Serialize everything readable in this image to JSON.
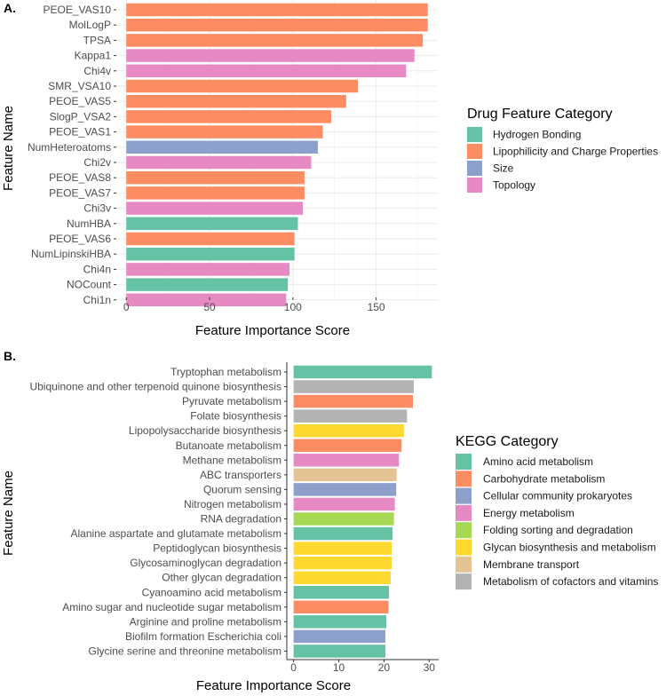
{
  "chart_data": [
    {
      "type": "bar",
      "orientation": "horizontal",
      "panel_label": "A.",
      "xlabel": "Feature Importance Score",
      "ylabel": "Feature Name",
      "xlim": [
        -6,
        187
      ],
      "xticks": [
        0,
        50,
        100,
        150
      ],
      "grid": true,
      "legend_title": "Drug Feature Category",
      "legend_position": "right",
      "colors": {
        "Hydrogen Bonding": "#66c2a5",
        "Lipophilicity and Charge Properties": "#fc8d62",
        "Size": "#8da0cb",
        "Topology": "#e78ac3"
      },
      "categories": [
        "PEOE_VAS10",
        "MolLogP",
        "TPSA",
        "Kappa1",
        "Chi4v",
        "SMR_VSA10",
        "PEOE_VAS5",
        "SlogP_VSA2",
        "PEOE_VAS1",
        "NumHeteroatoms",
        "Chi2v",
        "PEOE_VAS8",
        "PEOE_VAS7",
        "Chi3v",
        "NumHBA",
        "PEOE_VAS6",
        "NumLipinskiHBA",
        "Chi4n",
        "NOCount",
        "Chi1n"
      ],
      "values": [
        181,
        181,
        178,
        173,
        168,
        139,
        132,
        123,
        118,
        115,
        111,
        107,
        107,
        106,
        103,
        101,
        101,
        98,
        97,
        96
      ],
      "groups": [
        "Lipophilicity and Charge Properties",
        "Lipophilicity and Charge Properties",
        "Lipophilicity and Charge Properties",
        "Topology",
        "Topology",
        "Lipophilicity and Charge Properties",
        "Lipophilicity and Charge Properties",
        "Lipophilicity and Charge Properties",
        "Lipophilicity and Charge Properties",
        "Size",
        "Topology",
        "Lipophilicity and Charge Properties",
        "Lipophilicity and Charge Properties",
        "Topology",
        "Hydrogen Bonding",
        "Lipophilicity and Charge Properties",
        "Hydrogen Bonding",
        "Topology",
        "Hydrogen Bonding",
        "Topology"
      ]
    },
    {
      "type": "bar",
      "orientation": "horizontal",
      "panel_label": "B.",
      "xlabel": "Feature Importance Score",
      "ylabel": "Feature Name",
      "xlim": [
        -1.5,
        32.1
      ],
      "xticks": [
        0,
        10,
        20,
        30
      ],
      "grid": false,
      "legend_title": "KEGG Category",
      "legend_position": "right",
      "colors": {
        "Amino acid metabolism": "#66c2a5",
        "Carbohydrate metabolism": "#fc8d62",
        "Cellular community prokaryotes": "#8da0cb",
        "Energy metabolism": "#e78ac3",
        "Folding sorting and degradation": "#a6d854",
        "Glycan biosynthesis and metabolism": "#ffd92f",
        "Membrane transport": "#e5c494",
        "Metabolism of cofactors and vitamins": "#b3b3b3"
      },
      "categories": [
        "Tryptophan metabolism",
        "Ubiquinone and other terpenoid quinone biosynthesis",
        "Pyruvate metabolism",
        "Folate biosynthesis",
        "Lipopolysaccharide biosynthesis",
        "Butanoate metabolism",
        "Methane metabolism",
        "ABC transporters",
        "Quorum sensing",
        "Nitrogen metabolism",
        "RNA degradation",
        "Alanine aspartate and glutamate metabolism",
        "Peptidoglycan biosynthesis",
        "Glycosaminoglycan degradation",
        "Other glycan degradation",
        "Cyanoamino acid metabolism",
        "Amino sugar and nucleotide sugar metabolism",
        "Arginine and proline metabolism",
        "Biofilm formation Escherichia coli",
        "Glycine serine and threonine metabolism"
      ],
      "values": [
        30.6,
        26.6,
        26.4,
        25.1,
        24.4,
        23.9,
        23.3,
        22.8,
        22.7,
        22.4,
        22.2,
        21.9,
        21.7,
        21.7,
        21.5,
        21.1,
        21.0,
        20.5,
        20.3,
        20.3
      ],
      "groups": [
        "Amino acid metabolism",
        "Metabolism of cofactors and vitamins",
        "Carbohydrate metabolism",
        "Metabolism of cofactors and vitamins",
        "Glycan biosynthesis and metabolism",
        "Carbohydrate metabolism",
        "Energy metabolism",
        "Membrane transport",
        "Cellular community prokaryotes",
        "Energy metabolism",
        "Folding sorting and degradation",
        "Amino acid metabolism",
        "Glycan biosynthesis and metabolism",
        "Glycan biosynthesis and metabolism",
        "Glycan biosynthesis and metabolism",
        "Amino acid metabolism",
        "Carbohydrate metabolism",
        "Amino acid metabolism",
        "Cellular community prokaryotes",
        "Amino acid metabolism"
      ]
    }
  ]
}
